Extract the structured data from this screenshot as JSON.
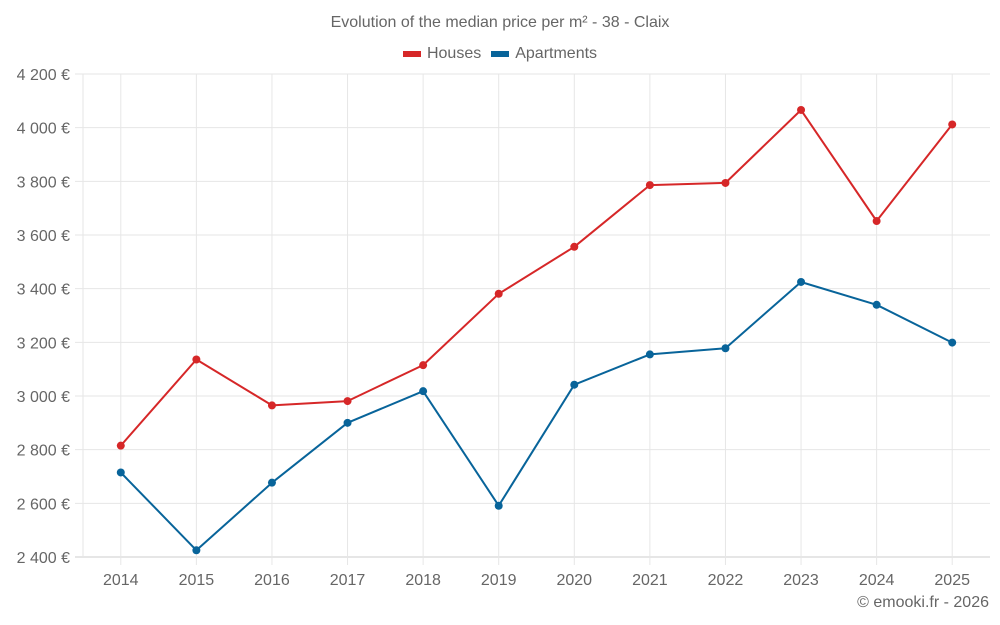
{
  "chart_data": {
    "type": "line",
    "title": "Evolution of the median price per m² - 38 - Claix",
    "xlabel": "",
    "ylabel": "",
    "categories": [
      "2014",
      "2015",
      "2016",
      "2017",
      "2018",
      "2019",
      "2020",
      "2021",
      "2022",
      "2023",
      "2024",
      "2025"
    ],
    "series": [
      {
        "name": "Houses",
        "color": "#d62728",
        "values": [
          2815,
          3136,
          2965,
          2981,
          3115,
          3381,
          3556,
          3786,
          3794,
          4066,
          3652,
          4012
        ]
      },
      {
        "name": "Apartments",
        "color": "#08649a",
        "values": [
          2715,
          2425,
          2677,
          2900,
          3018,
          2591,
          3042,
          3155,
          3178,
          3425,
          3340,
          3199
        ]
      }
    ],
    "ylim": [
      2400,
      4200
    ],
    "yticks": [
      2400,
      2600,
      2800,
      3000,
      3200,
      3400,
      3600,
      3800,
      4000,
      4200
    ],
    "ytick_labels": [
      "2 400 €",
      "2 600 €",
      "2 800 €",
      "3 000 €",
      "3 200 €",
      "3 400 €",
      "3 600 €",
      "3 800 €",
      "4 000 €",
      "4 200 €"
    ],
    "grid": true,
    "legend_position": "top-center"
  },
  "footer": {
    "credit": "© emooki.fr - 2026"
  }
}
